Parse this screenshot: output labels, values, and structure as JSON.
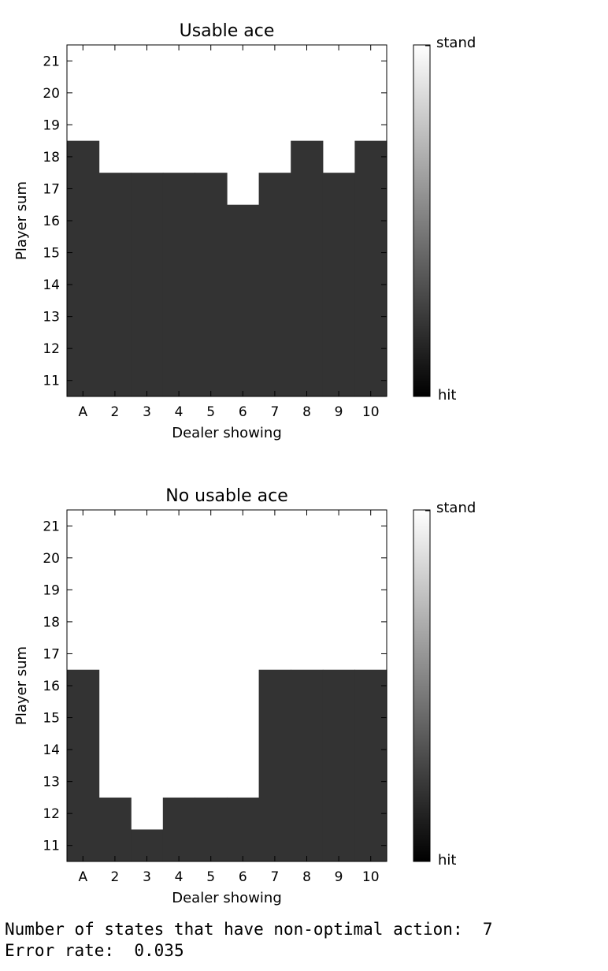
{
  "chart_data": [
    {
      "type": "heatmap",
      "title": "Usable ace",
      "xlabel": "Dealer showing",
      "ylabel": "Player sum",
      "x_categories": [
        "A",
        "2",
        "3",
        "4",
        "5",
        "6",
        "7",
        "8",
        "9",
        "10"
      ],
      "y_values": [
        11,
        12,
        13,
        14,
        15,
        16,
        17,
        18,
        19,
        20,
        21
      ],
      "stand_threshold": [
        19,
        18,
        18,
        18,
        18,
        17,
        18,
        19,
        18,
        19
      ],
      "colorbar": {
        "min_label": "hit",
        "max_label": "stand"
      },
      "grid": false
    },
    {
      "type": "heatmap",
      "title": "No usable ace",
      "xlabel": "Dealer showing",
      "ylabel": "Player sum",
      "x_categories": [
        "A",
        "2",
        "3",
        "4",
        "5",
        "6",
        "7",
        "8",
        "9",
        "10"
      ],
      "y_values": [
        11,
        12,
        13,
        14,
        15,
        16,
        17,
        18,
        19,
        20,
        21
      ],
      "stand_threshold": [
        17,
        13,
        12,
        13,
        13,
        13,
        17,
        17,
        17,
        17
      ],
      "colorbar": {
        "min_label": "hit",
        "max_label": "stand"
      },
      "grid": false
    }
  ],
  "output": {
    "nonoptimal_label": "Number of states that have non-optimal action:",
    "nonoptimal_value": "7",
    "error_label": "Error rate:",
    "error_value": "0.035"
  }
}
